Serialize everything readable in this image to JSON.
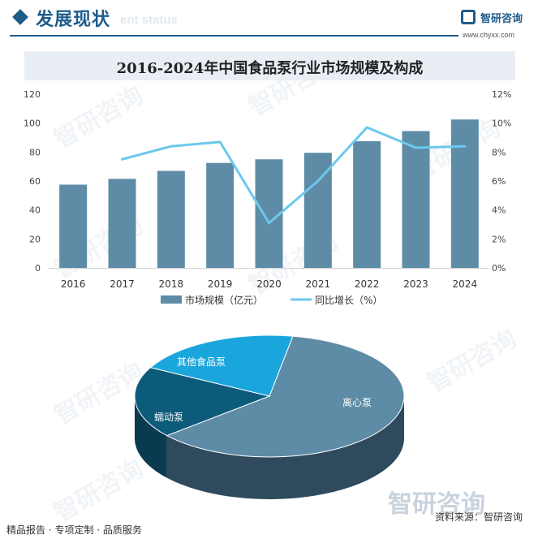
{
  "header": {
    "title": "发展现状",
    "subtitle": "ent status",
    "brand_name": "智研咨询",
    "brand_url": "www.chyxx.com"
  },
  "watermark_text": "智研咨询",
  "colors": {
    "bar": "#5e8ca7",
    "line": "#6cc8ec",
    "pie_large": "#5e8ca7",
    "pie_mid": "#0d5b7a",
    "pie_small": "#1aa6dc",
    "brand": "#1f5c8a"
  },
  "chart_data": [
    {
      "type": "bar",
      "title": "2016-2024年中国食品泵行业市场规模及构成",
      "categories": [
        "2016",
        "2017",
        "2018",
        "2019",
        "2020",
        "2021",
        "2022",
        "2023",
        "2024"
      ],
      "series": [
        {
          "name": "市场规模（亿元）",
          "type": "bar",
          "axis": "left",
          "values": [
            57.5,
            61.5,
            67,
            72.5,
            75,
            79.5,
            87.5,
            94.5,
            102.5
          ]
        },
        {
          "name": "同比增长（%）",
          "type": "line",
          "axis": "right",
          "values": [
            null,
            7.5,
            8.4,
            8.7,
            3.1,
            6.0,
            9.7,
            8.3,
            8.4
          ]
        }
      ],
      "y_left": {
        "ylim": [
          0,
          120
        ],
        "ticks": [
          "0",
          "20",
          "40",
          "60",
          "80",
          "100",
          "120"
        ]
      },
      "y_right": {
        "ylim": [
          0,
          12
        ],
        "ticks": [
          "0%",
          "2%",
          "4%",
          "6%",
          "8%",
          "10%",
          "12%"
        ]
      },
      "legend_position": "bottom",
      "grid": false
    },
    {
      "type": "pie",
      "style": "3d",
      "slices": [
        {
          "label": "离心泵",
          "value": 61
        },
        {
          "label": "蠕动泵",
          "value": 19
        },
        {
          "label": "其他食品泵",
          "value": 20
        }
      ]
    }
  ],
  "footer": {
    "left": "精品报告 · 专项定制 · 品质服务",
    "source": "资料来源：智研咨询"
  }
}
